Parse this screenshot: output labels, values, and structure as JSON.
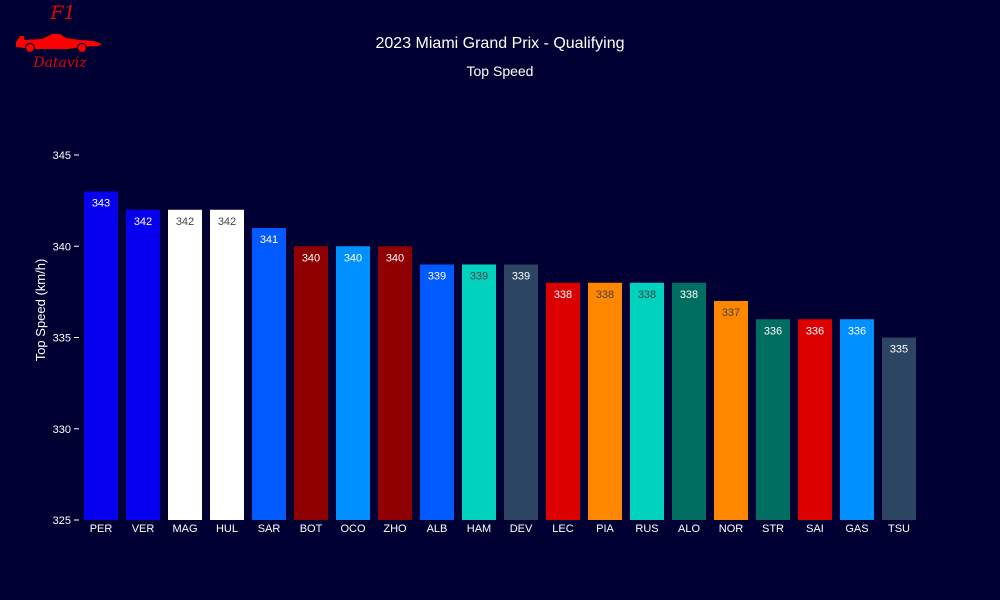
{
  "logo": {
    "brand": "F1",
    "tagline": "Dataviz"
  },
  "chart_data": {
    "type": "bar",
    "title": "2023 Miami Grand Prix - Qualifying",
    "subtitle": "Top Speed",
    "xlabel": "",
    "ylabel": "Top Speed (km/h)",
    "ylim": [
      325,
      347
    ],
    "yticks": [
      325,
      330,
      335,
      340,
      345
    ],
    "grid": false,
    "categories": [
      "PER",
      "VER",
      "MAG",
      "HUL",
      "SAR",
      "BOT",
      "OCO",
      "ZHO",
      "ALB",
      "HAM",
      "DEV",
      "LEC",
      "PIA",
      "RUS",
      "ALO",
      "NOR",
      "STR",
      "SAI",
      "GAS",
      "TSU"
    ],
    "values": [
      343,
      342,
      342,
      342,
      341,
      340,
      340,
      340,
      339,
      339,
      339,
      338,
      338,
      338,
      338,
      337,
      336,
      336,
      336,
      335
    ],
    "colors": [
      "#0600EF",
      "#0600EF",
      "#FFFFFF",
      "#FFFFFF",
      "#005AFF",
      "#900000",
      "#0090FF",
      "#900000",
      "#005AFF",
      "#00D2BE",
      "#2B4562",
      "#DC0000",
      "#FF8700",
      "#00D2BE",
      "#006F62",
      "#FF8700",
      "#006F62",
      "#DC0000",
      "#0090FF",
      "#2B4562"
    ],
    "label_colors": [
      "#FFFFFF",
      "#FFFFFF",
      "#444444",
      "#444444",
      "#FFFFFF",
      "#FFFFFF",
      "#FFFFFF",
      "#FFFFFF",
      "#FFFFFF",
      "#444444",
      "#FFFFFF",
      "#FFFFFF",
      "#444444",
      "#444444",
      "#FFFFFF",
      "#444444",
      "#FFFFFF",
      "#FFFFFF",
      "#FFFFFF",
      "#FFFFFF"
    ],
    "background": "#000033"
  }
}
